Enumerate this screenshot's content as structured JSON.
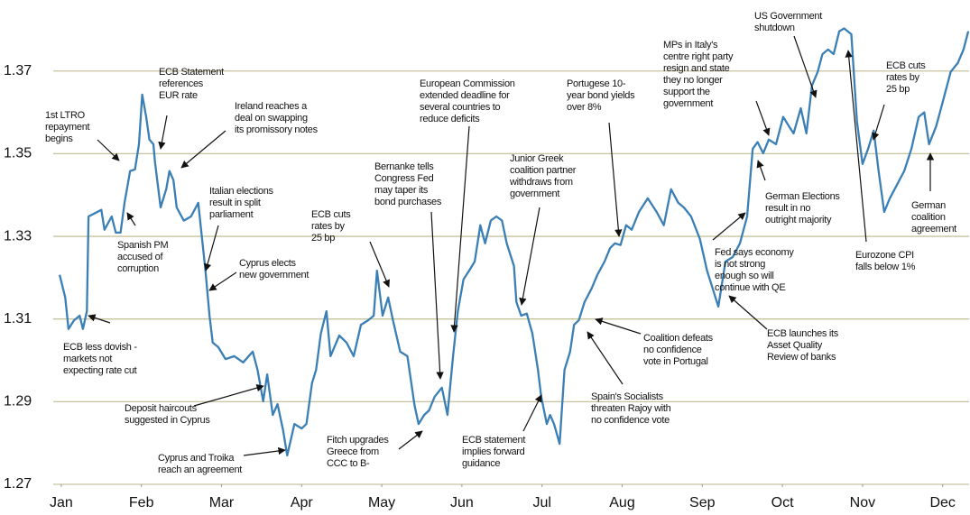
{
  "chart_data": {
    "type": "line",
    "color": "#3a7fb5",
    "grid": true,
    "grid_color": "#c9c29e",
    "xlim": [
      -0.1,
      11.33
    ],
    "ylim": [
      1.27,
      1.385
    ],
    "yticks": [
      1.27,
      1.29,
      1.31,
      1.33,
      1.35,
      1.37
    ],
    "xticks": [
      {
        "value": 0,
        "label": "Jan"
      },
      {
        "value": 1,
        "label": "Feb"
      },
      {
        "value": 2,
        "label": "Mar"
      },
      {
        "value": 3,
        "label": "Apr"
      },
      {
        "value": 4,
        "label": "May"
      },
      {
        "value": 5,
        "label": "Jun"
      },
      {
        "value": 6,
        "label": "Jul"
      },
      {
        "value": 7,
        "label": "Aug"
      },
      {
        "value": 8,
        "label": "Sep"
      },
      {
        "value": 9,
        "label": "Oct"
      },
      {
        "value": 10,
        "label": "Nov"
      },
      {
        "value": 11,
        "label": "Dec"
      }
    ],
    "x": [
      -0.02,
      0.05,
      0.09,
      0.16,
      0.23,
      0.27,
      0.32,
      0.34,
      0.41,
      0.5,
      0.54,
      0.63,
      0.68,
      0.74,
      0.79,
      0.86,
      0.92,
      0.97,
      1.01,
      1.06,
      1.1,
      1.15,
      1.17,
      1.24,
      1.31,
      1.35,
      1.4,
      1.44,
      1.53,
      1.62,
      1.71,
      1.8,
      1.85,
      1.89,
      1.96,
      2.05,
      2.16,
      2.27,
      2.39,
      2.45,
      2.52,
      2.57,
      2.64,
      2.7,
      2.77,
      2.82,
      2.91,
      3.0,
      3.06,
      3.13,
      3.18,
      3.24,
      3.31,
      3.36,
      3.47,
      3.56,
      3.65,
      3.74,
      3.83,
      3.9,
      3.94,
      4.01,
      4.08,
      4.14,
      4.23,
      4.32,
      4.41,
      4.46,
      4.53,
      4.59,
      4.66,
      4.75,
      4.82,
      4.89,
      4.95,
      5.02,
      5.09,
      5.16,
      5.23,
      5.29,
      5.36,
      5.43,
      5.5,
      5.56,
      5.65,
      5.68,
      5.74,
      5.81,
      5.88,
      5.95,
      5.99,
      6.06,
      6.1,
      6.15,
      6.22,
      6.28,
      6.35,
      6.4,
      6.46,
      6.53,
      6.62,
      6.69,
      6.78,
      6.85,
      6.91,
      6.98,
      7.05,
      7.12,
      7.21,
      7.32,
      7.43,
      7.52,
      7.61,
      7.7,
      7.77,
      7.86,
      7.97,
      8.06,
      8.13,
      8.2,
      8.29,
      8.38,
      8.47,
      8.56,
      8.63,
      8.69,
      8.76,
      8.83,
      8.92,
      9.01,
      9.08,
      9.14,
      9.23,
      9.3,
      9.37,
      9.44,
      9.5,
      9.57,
      9.64,
      9.71,
      9.77,
      9.86,
      9.93,
      10.0,
      10.07,
      10.14,
      10.2,
      10.27,
      10.34,
      10.43,
      10.52,
      10.61,
      10.7,
      10.77,
      10.83,
      10.92,
      11.01,
      11.1,
      11.19,
      11.26,
      11.32
    ],
    "values": [
      1.3207,
      1.3152,
      1.3076,
      1.3097,
      1.3108,
      1.3076,
      1.3119,
      1.3348,
      1.3355,
      1.3364,
      1.3316,
      1.3348,
      1.3309,
      1.3309,
      1.3381,
      1.3458,
      1.3462,
      1.3523,
      1.3643,
      1.3589,
      1.3534,
      1.3523,
      1.3479,
      1.337,
      1.3414,
      1.3458,
      1.3436,
      1.337,
      1.3338,
      1.3348,
      1.3381,
      1.3217,
      1.3108,
      1.3043,
      1.3032,
      1.3003,
      1.301,
      1.2995,
      1.3021,
      1.2977,
      1.2901,
      1.2966,
      1.2868,
      1.2894,
      1.2829,
      1.277,
      1.2846,
      1.2835,
      1.2846,
      1.2945,
      1.2977,
      1.3065,
      1.3119,
      1.301,
      1.306,
      1.3043,
      1.301,
      1.3086,
      1.3097,
      1.3108,
      1.3217,
      1.3108,
      1.3152,
      1.3097,
      1.3021,
      1.301,
      1.289,
      1.2846,
      1.2868,
      1.2879,
      1.2912,
      1.2934,
      1.2868,
      1.301,
      1.3119,
      1.3196,
      1.3217,
      1.3239,
      1.3327,
      1.3283,
      1.3338,
      1.3348,
      1.3338,
      1.3283,
      1.3228,
      1.3141,
      1.3108,
      1.3113,
      1.3065,
      1.2977,
      1.2912,
      1.2846,
      1.2868,
      1.2846,
      1.2798,
      1.2977,
      1.3021,
      1.3086,
      1.3097,
      1.3141,
      1.3174,
      1.3207,
      1.3239,
      1.3272,
      1.3283,
      1.3279,
      1.3327,
      1.3316,
      1.3359,
      1.3392,
      1.3359,
      1.3327,
      1.3414,
      1.3381,
      1.337,
      1.3348,
      1.3294,
      1.3217,
      1.3174,
      1.313,
      1.3239,
      1.325,
      1.3283,
      1.3348,
      1.3512,
      1.3528,
      1.3501,
      1.3534,
      1.3523,
      1.3589,
      1.3567,
      1.3549,
      1.361,
      1.3549,
      1.3665,
      1.3698,
      1.3741,
      1.3752,
      1.3741,
      1.3796,
      1.3803,
      1.3789,
      1.3578,
      1.3475,
      1.3512,
      1.3556,
      1.3458,
      1.3359,
      1.3392,
      1.3425,
      1.3458,
      1.3512,
      1.3589,
      1.36,
      1.3523,
      1.3567,
      1.3632,
      1.3698,
      1.372,
      1.3752,
      1.3796
    ],
    "annotations": [
      [
        "1st LTRO",
        "repayment",
        "begins"
      ],
      [
        "ECB Statement",
        "references",
        "EUR rate"
      ],
      [
        "Ireland reaches a",
        "deal on swapping",
        "its promissory notes"
      ],
      [
        "Spanish PM",
        "accused of",
        "corruption"
      ],
      [
        "Italian elections",
        "result in split",
        "parliament"
      ],
      [
        "ECB less dovish -",
        "markets not",
        "expecting rate cut"
      ],
      [
        "Cyprus elects",
        "new government"
      ],
      [
        "Deposit haircouts",
        "suggested in Cyprus"
      ],
      [
        "Cyprus and Troika",
        "reach an agreement"
      ],
      [
        "ECB cuts",
        "rates by",
        "25 bp"
      ],
      [
        "Bernanke tells",
        "Congress Fed",
        "may taper its",
        "bond purchases"
      ],
      [
        "Fitch upgrades",
        "Greece from",
        "CCC to B-"
      ],
      [
        "European Commission",
        "extended deadline for",
        "several countries to",
        "reduce deficits"
      ],
      [
        "Junior Greek",
        "coalition partner",
        "withdraws from",
        "government"
      ],
      [
        "ECB statement",
        "implies forward",
        "guidance"
      ],
      [
        "Portugese 10-",
        "year bond yields",
        "over 8%"
      ],
      [
        "Coalition defeats",
        "no confidence",
        "vote in Portugal"
      ],
      [
        "Spain's Socialists",
        "threaten Rajoy with",
        "no confidence vote"
      ],
      [
        "MPs in Italy's",
        "centre right party",
        "resign and state",
        "they no longer",
        "support the",
        "government"
      ],
      [
        "US Government",
        "shutdown"
      ],
      [
        "German Elections",
        "result in no",
        "outright majority"
      ],
      [
        "Fed says economy",
        "is not strong",
        "enough so will",
        "continue with QE"
      ],
      [
        "ECB launches its",
        "Asset Quality",
        "Review of banks"
      ],
      [
        "Eurozone CPI",
        "falls below 1%"
      ],
      [
        "ECB cuts",
        "rates by",
        "25 bp"
      ],
      [
        "German",
        "coalition",
        "agreement"
      ]
    ]
  }
}
